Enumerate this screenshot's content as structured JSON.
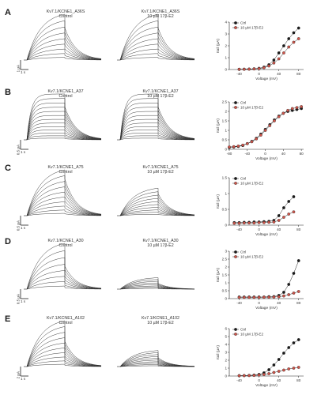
{
  "panels": [
    {
      "letter": "A",
      "ctrl_title": "Kv7.1/KCNE1_A36S",
      "ctrl_sub": "Control",
      "drug_title": "Kv7.1/KCNE1_A36S",
      "drug_sub": "10 µM 17β-E2",
      "scale_y": "1 µA",
      "scale_x": "1 s",
      "chart_data": {
        "type": "scatter",
        "ylabel": "Itail (µA)",
        "xlabel": "Voltage (mV)",
        "xticks": [
          -40,
          0,
          40,
          80
        ],
        "yticks": [
          0,
          1,
          2,
          3,
          4
        ],
        "xlim": [
          -60,
          90
        ],
        "ylim": [
          0,
          4
        ],
        "x": [
          -40,
          -30,
          -20,
          -10,
          0,
          10,
          20,
          30,
          40,
          50,
          60,
          70,
          80
        ],
        "series": [
          {
            "name": "Ctrl",
            "values": [
              0.02,
              0.03,
              0.04,
              0.06,
              0.1,
              0.2,
              0.4,
              0.8,
              1.4,
              2.0,
              2.6,
              3.1,
              3.5
            ]
          },
          {
            "name": "10 µM 17β-E2",
            "values": [
              0.02,
              0.02,
              0.03,
              0.05,
              0.08,
              0.15,
              0.3,
              0.55,
              0.9,
              1.4,
              1.9,
              2.3,
              2.6
            ]
          }
        ],
        "legend": "top-left"
      }
    },
    {
      "letter": "B",
      "ctrl_title": "Kv7.1/KCNE1_A37",
      "ctrl_sub": "Control",
      "drug_title": "Kv7.1/KCNE1_A37",
      "drug_sub": "10 µM 17β-E2",
      "scale_y": "0.5 µA",
      "scale_x": "1 s",
      "chart_data": {
        "type": "scatter",
        "ylabel": "Itail (µA)",
        "xlabel": "Voltage (mV)",
        "xticks": [
          -80,
          -40,
          0,
          40,
          80
        ],
        "yticks": [
          0.0,
          0.5,
          1.0,
          1.5,
          2.0,
          2.5
        ],
        "xlim": [
          -80,
          85
        ],
        "ylim": [
          0,
          2.5
        ],
        "x": [
          -80,
          -70,
          -60,
          -50,
          -40,
          -30,
          -20,
          -10,
          0,
          10,
          20,
          30,
          40,
          50,
          60,
          70,
          80
        ],
        "series": [
          {
            "name": "Ctrl",
            "values": [
              0.1,
              0.12,
              0.15,
              0.2,
              0.3,
              0.42,
              0.58,
              0.8,
              1.05,
              1.3,
              1.55,
              1.75,
              1.9,
              2.0,
              2.05,
              2.1,
              2.15
            ]
          },
          {
            "name": "10 µM 17β-E2",
            "values": [
              0.12,
              0.14,
              0.17,
              0.22,
              0.3,
              0.4,
              0.55,
              0.75,
              1.0,
              1.25,
              1.5,
              1.72,
              1.9,
              2.05,
              2.15,
              2.2,
              2.25
            ]
          }
        ],
        "legend": "top-left"
      }
    },
    {
      "letter": "C",
      "ctrl_title": "Kv7.1/KCNE1_A75",
      "ctrl_sub": "Control",
      "drug_title": "Kv7.1/KCNE1_A75",
      "drug_sub": "10 µM 17β-E2",
      "scale_y": "0.5 µA",
      "scale_x": "1 s",
      "chart_data": {
        "type": "scatter",
        "ylabel": "Itail (µA)",
        "xlabel": "Voltage (mV)",
        "xticks": [
          -40,
          0,
          40,
          80
        ],
        "yticks": [
          0.0,
          0.5,
          1.0,
          1.5
        ],
        "xlim": [
          -60,
          90
        ],
        "ylim": [
          0,
          1.5
        ],
        "x": [
          -50,
          -40,
          -30,
          -20,
          -10,
          0,
          10,
          20,
          30,
          40,
          50,
          60,
          70
        ],
        "series": [
          {
            "name": "Ctrl",
            "values": [
              0.08,
              0.08,
              0.09,
              0.09,
              0.1,
              0.1,
              0.11,
              0.12,
              0.15,
              0.3,
              0.55,
              0.75,
              0.9
            ]
          },
          {
            "name": "10 µM 17β-E2",
            "values": [
              0.06,
              0.06,
              0.07,
              0.07,
              0.07,
              0.08,
              0.08,
              0.09,
              0.1,
              0.15,
              0.25,
              0.35,
              0.42
            ]
          }
        ],
        "legend": "top-left"
      }
    },
    {
      "letter": "D",
      "ctrl_title": "Kv7.1/KCNE1_A30",
      "ctrl_sub": "Control",
      "drug_title": "Kv7.1/KCNE1_A30",
      "drug_sub": "10 µM 17β-E2",
      "scale_y": "0.5 µA",
      "scale_x": "1 s",
      "chart_data": {
        "type": "scatter",
        "ylabel": "Itail (µA)",
        "xlabel": "Voltage (mV)",
        "xticks": [
          -40,
          0,
          40,
          80
        ],
        "yticks": [
          0.0,
          0.5,
          1.0,
          1.5,
          2.0,
          2.5,
          3.0
        ],
        "xlim": [
          -60,
          90
        ],
        "ylim": [
          0,
          3.0
        ],
        "x": [
          -40,
          -30,
          -20,
          -10,
          0,
          10,
          20,
          30,
          40,
          50,
          60,
          70,
          80
        ],
        "series": [
          {
            "name": "Ctrl",
            "values": [
              0.1,
              0.1,
              0.1,
              0.1,
              0.1,
              0.1,
              0.12,
              0.13,
              0.2,
              0.4,
              0.9,
              1.6,
              2.4
            ]
          },
          {
            "name": "10 µM 17β-E2",
            "values": [
              0.08,
              0.08,
              0.08,
              0.08,
              0.08,
              0.09,
              0.09,
              0.1,
              0.12,
              0.17,
              0.25,
              0.35,
              0.45
            ]
          }
        ],
        "legend": "top-left"
      }
    },
    {
      "letter": "E",
      "ctrl_title": "Kv7.1/KCNE1_A102",
      "ctrl_sub": "Control",
      "drug_title": "Kv7.1/KCNE1_A102",
      "drug_sub": "10 µM 17β-E2",
      "scale_y": "2 µA",
      "scale_x": "1 s",
      "chart_data": {
        "type": "scatter",
        "ylabel": "Itail (µA)",
        "xlabel": "Voltage (mV)",
        "xticks": [
          -40,
          0,
          40,
          80
        ],
        "yticks": [
          0,
          1,
          2,
          3,
          4,
          5,
          6
        ],
        "xlim": [
          -60,
          90
        ],
        "ylim": [
          0,
          6
        ],
        "x": [
          -40,
          -30,
          -20,
          -10,
          0,
          10,
          20,
          30,
          40,
          50,
          60,
          70,
          80
        ],
        "series": [
          {
            "name": "Ctrl",
            "values": [
              0.05,
              0.06,
              0.08,
              0.12,
              0.2,
              0.4,
              0.8,
              1.4,
              2.1,
              2.9,
              3.6,
              4.2,
              4.6
            ]
          },
          {
            "name": "10 µM 17β-E2",
            "values": [
              0.04,
              0.05,
              0.06,
              0.08,
              0.12,
              0.2,
              0.3,
              0.45,
              0.6,
              0.75,
              0.9,
              1.0,
              1.1
            ]
          }
        ],
        "legend": "top-left"
      }
    }
  ],
  "trace_sets": [
    {
      "n": 9,
      "fast": false,
      "spike": false,
      "tail": 0.7
    },
    {
      "n": 13,
      "fast": true,
      "spike": false,
      "tail": 0.72
    },
    {
      "n": 10,
      "fast": false,
      "spike": true,
      "tail": 0.5
    },
    {
      "n": 8,
      "fast": false,
      "spike": false,
      "tail": 0.5
    },
    {
      "n": 10,
      "fast": false,
      "spike": false,
      "tail": 0.55
    }
  ],
  "drug_scale": [
    1.0,
    1.0,
    0.6,
    0.25,
    0.35
  ],
  "colors": {
    "ctrl": "#1a1a1a",
    "drug": "#d0554a",
    "trace": "#2a2a2a"
  }
}
